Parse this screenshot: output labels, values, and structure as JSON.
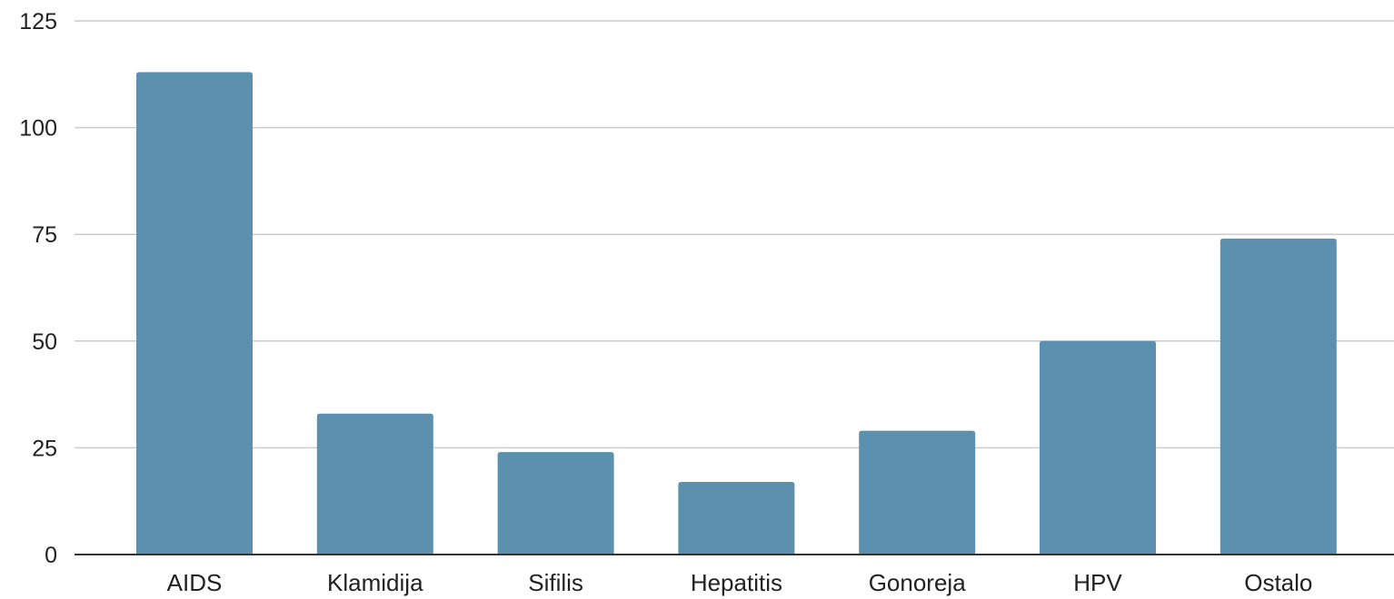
{
  "chart_data": {
    "type": "bar",
    "title": "",
    "xlabel": "",
    "ylabel": "",
    "categories": [
      "AIDS",
      "Klamidija",
      "Sifilis",
      "Hepatitis",
      "Gonoreja",
      "HPV",
      "Ostalo"
    ],
    "values": [
      113,
      33,
      24,
      17,
      29,
      50,
      74
    ],
    "ylim": [
      0,
      125
    ],
    "yticks": [
      "0",
      "25",
      "50",
      "75",
      "100",
      "125"
    ],
    "grid": true,
    "legend": "none",
    "bar_color": "#5b91ae",
    "grid_color": "#cccccc",
    "axis_color": "#333333"
  }
}
